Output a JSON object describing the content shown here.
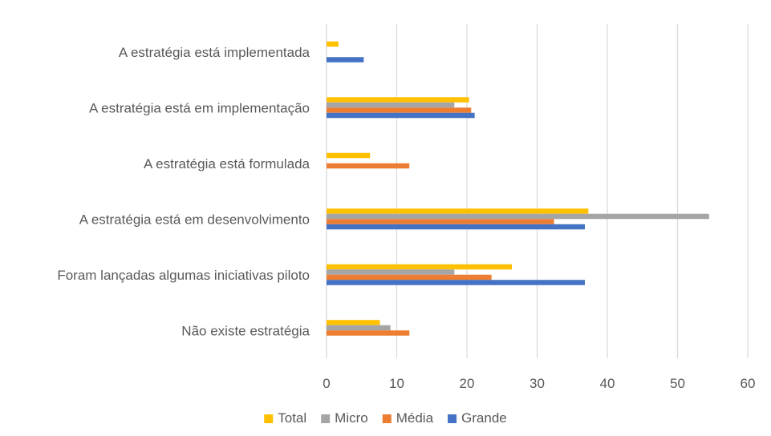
{
  "chart_data": {
    "type": "bar",
    "orientation": "horizontal",
    "categories": [
      "A estratégia está implementada",
      "A estratégia está em implementação",
      "A estratégia está formulada",
      "A estratégia está em desenvolvimento",
      "Foram lançadas algumas iniciativas piloto",
      "Não existe estratégia"
    ],
    "series": [
      {
        "name": "Total",
        "color": "#FFC000",
        "values": [
          1.7,
          20.3,
          6.2,
          37.3,
          26.4,
          7.6
        ]
      },
      {
        "name": "Micro",
        "color": "#A5A5A5",
        "values": [
          0,
          18.2,
          0,
          54.5,
          18.2,
          9.1
        ]
      },
      {
        "name": "Média",
        "color": "#ED7D31",
        "values": [
          0,
          20.6,
          11.8,
          32.4,
          23.5,
          11.8
        ]
      },
      {
        "name": "Grande",
        "color": "#4472C4",
        "values": [
          5.3,
          21.1,
          0,
          36.8,
          36.8,
          0
        ]
      }
    ],
    "xlim": [
      0,
      60
    ],
    "xticks": [
      "0",
      "10",
      "20",
      "30",
      "40",
      "50",
      "60"
    ],
    "grid": true,
    "legend_position": "bottom"
  }
}
